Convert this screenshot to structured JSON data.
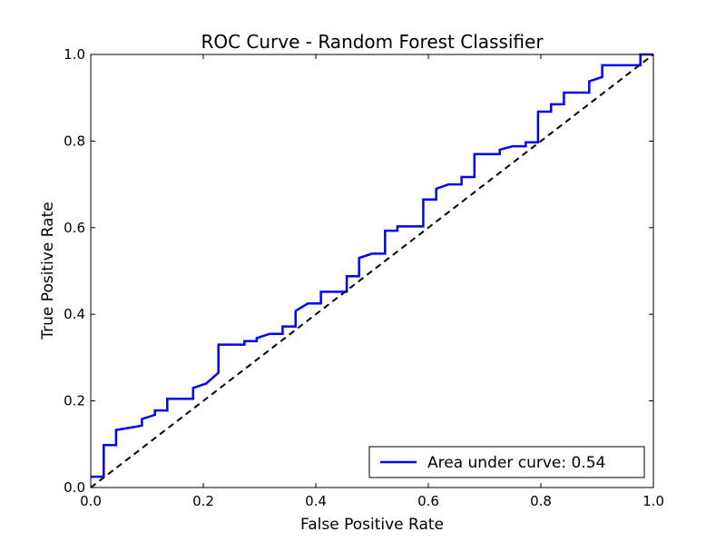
{
  "chart_data": {
    "type": "line",
    "title": "ROC Curve - Random Forest Classifier",
    "xlabel": "False Positive Rate",
    "ylabel": "True Positive Rate",
    "xlim": [
      0.0,
      1.0
    ],
    "ylim": [
      0.0,
      1.0
    ],
    "x_ticks": [
      "0.0",
      "0.2",
      "0.4",
      "0.6",
      "0.8",
      "1.0"
    ],
    "y_ticks": [
      "0.0",
      "0.2",
      "0.4",
      "0.6",
      "0.8",
      "1.0"
    ],
    "grid": false,
    "legend_position": "lower right",
    "series": [
      {
        "name": "Area under curve: 0.54",
        "color": "#0000ff",
        "style": "solid",
        "points": [
          [
            0.0,
            0.025
          ],
          [
            0.023,
            0.025
          ],
          [
            0.023,
            0.098
          ],
          [
            0.045,
            0.098
          ],
          [
            0.045,
            0.133
          ],
          [
            0.091,
            0.143
          ],
          [
            0.091,
            0.158
          ],
          [
            0.114,
            0.168
          ],
          [
            0.114,
            0.178
          ],
          [
            0.136,
            0.178
          ],
          [
            0.136,
            0.205
          ],
          [
            0.182,
            0.205
          ],
          [
            0.182,
            0.23
          ],
          [
            0.205,
            0.24
          ],
          [
            0.227,
            0.265
          ],
          [
            0.227,
            0.33
          ],
          [
            0.273,
            0.33
          ],
          [
            0.273,
            0.338
          ],
          [
            0.295,
            0.338
          ],
          [
            0.295,
            0.345
          ],
          [
            0.318,
            0.355
          ],
          [
            0.341,
            0.355
          ],
          [
            0.341,
            0.372
          ],
          [
            0.364,
            0.372
          ],
          [
            0.364,
            0.408
          ],
          [
            0.386,
            0.425
          ],
          [
            0.409,
            0.425
          ],
          [
            0.409,
            0.452
          ],
          [
            0.455,
            0.452
          ],
          [
            0.455,
            0.488
          ],
          [
            0.477,
            0.488
          ],
          [
            0.477,
            0.53
          ],
          [
            0.5,
            0.54
          ],
          [
            0.523,
            0.54
          ],
          [
            0.523,
            0.593
          ],
          [
            0.545,
            0.593
          ],
          [
            0.545,
            0.603
          ],
          [
            0.591,
            0.603
          ],
          [
            0.591,
            0.665
          ],
          [
            0.614,
            0.665
          ],
          [
            0.614,
            0.69
          ],
          [
            0.636,
            0.7
          ],
          [
            0.659,
            0.7
          ],
          [
            0.659,
            0.717
          ],
          [
            0.682,
            0.717
          ],
          [
            0.682,
            0.77
          ],
          [
            0.727,
            0.77
          ],
          [
            0.727,
            0.78
          ],
          [
            0.75,
            0.788
          ],
          [
            0.773,
            0.788
          ],
          [
            0.773,
            0.797
          ],
          [
            0.795,
            0.797
          ],
          [
            0.795,
            0.868
          ],
          [
            0.818,
            0.868
          ],
          [
            0.818,
            0.885
          ],
          [
            0.841,
            0.885
          ],
          [
            0.841,
            0.912
          ],
          [
            0.886,
            0.912
          ],
          [
            0.886,
            0.938
          ],
          [
            0.909,
            0.948
          ],
          [
            0.909,
            0.975
          ],
          [
            0.977,
            0.975
          ],
          [
            0.977,
            1.0
          ],
          [
            1.0,
            1.0
          ]
        ]
      },
      {
        "name": "",
        "color": "#000000",
        "style": "dashed",
        "points": [
          [
            0.0,
            0.0
          ],
          [
            1.0,
            1.0
          ]
        ]
      }
    ]
  }
}
